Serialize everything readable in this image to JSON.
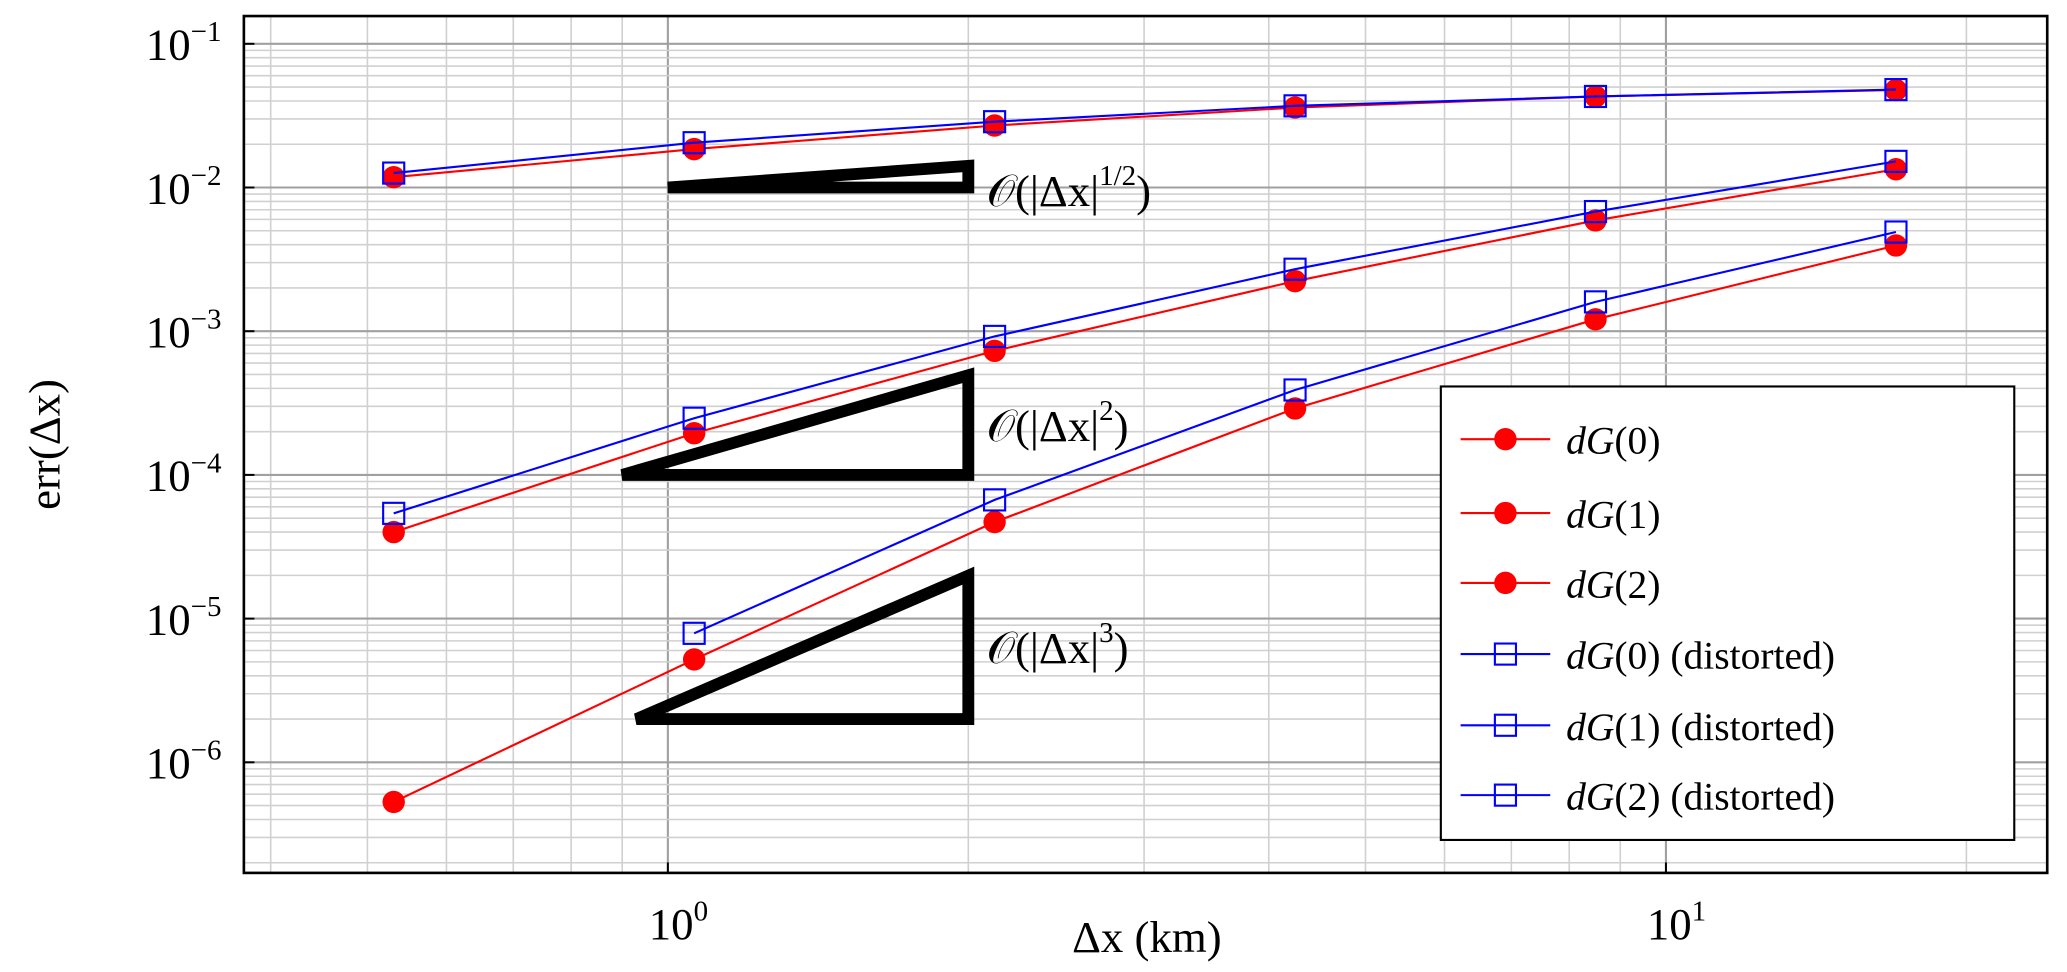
{
  "chart_data": {
    "type": "line",
    "title": "",
    "xlabel": "Δx (km)",
    "ylabel": "err(Δx)",
    "xscale": "log",
    "yscale": "log",
    "xlim": [
      0.376,
      24.1
    ],
    "ylim": [
      1.7e-07,
      0.156
    ],
    "grid": "major and minor",
    "legend_position": "bottom-right",
    "x_ticks": [
      {
        "base": "10",
        "exp": "0",
        "value": 1
      },
      {
        "base": "10",
        "exp": "1",
        "value": 10
      }
    ],
    "y_ticks": [
      {
        "base": "10",
        "exp": "−1",
        "value": 0.1
      },
      {
        "base": "10",
        "exp": "−2",
        "value": 0.01
      },
      {
        "base": "10",
        "exp": "−3",
        "value": 0.001
      },
      {
        "base": "10",
        "exp": "−4",
        "value": 0.0001
      },
      {
        "base": "10",
        "exp": "−5",
        "value": 1e-05
      },
      {
        "base": "10",
        "exp": "−6",
        "value": 1e-06
      }
    ],
    "colors": {
      "standard": "#ff0000",
      "distorted": "#0000ff"
    },
    "series": [
      {
        "name": "dG(0)",
        "marker": "filled-circle",
        "color": "#ff0000",
        "x": [
          0.53125,
          1.0625,
          2.125,
          4.25,
          8.5,
          17
        ],
        "y": [
          0.0118,
          0.0185,
          0.027,
          0.036,
          0.043,
          0.0477
        ]
      },
      {
        "name": "dG(1)",
        "marker": "filled-circle",
        "color": "#ff0000",
        "x": [
          0.53125,
          1.0625,
          2.125,
          4.25,
          8.5,
          17
        ],
        "y": [
          4e-05,
          0.000195,
          0.00073,
          0.00223,
          0.0059,
          0.0134
        ]
      },
      {
        "name": "dG(2)",
        "marker": "filled-circle",
        "color": "#ff0000",
        "x": [
          0.53125,
          1.0625,
          2.125,
          4.25,
          8.5,
          17
        ],
        "y": [
          5.3e-07,
          5.2e-06,
          4.7e-05,
          0.00029,
          0.00121,
          0.00395
        ]
      },
      {
        "name": "dG(0) (distorted)",
        "marker": "open-square",
        "color": "#0000ff",
        "x": [
          0.53125,
          1.0625,
          2.125,
          4.25,
          8.5,
          17
        ],
        "y": [
          0.0126,
          0.0205,
          0.0287,
          0.037,
          0.043,
          0.048
        ]
      },
      {
        "name": "dG(1) (distorted)",
        "marker": "open-square",
        "color": "#0000ff",
        "x": [
          0.53125,
          1.0625,
          2.125,
          4.25,
          8.5,
          17
        ],
        "y": [
          5.4e-05,
          0.000248,
          0.00092,
          0.0027,
          0.0068,
          0.0152
        ]
      },
      {
        "name": "dG(2) (distorted)",
        "marker": "open-square",
        "color": "#0000ff",
        "x": [
          1.0625,
          2.125,
          4.25,
          8.5,
          17
        ],
        "y": [
          7.9e-06,
          6.7e-05,
          0.00039,
          0.0016,
          0.0049
        ]
      }
    ],
    "legend": [
      {
        "prefix": "dG",
        "arg": "(0)",
        "suffix": ""
      },
      {
        "prefix": "dG",
        "arg": "(1)",
        "suffix": ""
      },
      {
        "prefix": "dG",
        "arg": "(2)",
        "suffix": ""
      },
      {
        "prefix": "dG",
        "arg": "(0)",
        "suffix": " (distorted)"
      },
      {
        "prefix": "dG",
        "arg": "(1)",
        "suffix": " (distorted)"
      },
      {
        "prefix": "dG",
        "arg": "(2)",
        "suffix": " (distorted)"
      }
    ],
    "annotations": [
      {
        "order": "1/2",
        "text": "𝒪(|Δx|",
        "exp": "1/2",
        "close": ")",
        "x0": 1,
        "x1": 2,
        "y_base": 0.01
      },
      {
        "order": "2",
        "text": "𝒪(|Δx|",
        "exp": "2",
        "close": ")",
        "x0": 0.9,
        "x1": 2,
        "y_base": 0.0001
      },
      {
        "order": "3",
        "text": "𝒪(|Δx|",
        "exp": "3",
        "close": ")",
        "x0": 0.93,
        "x1": 2,
        "y_base": 2e-06
      }
    ]
  }
}
